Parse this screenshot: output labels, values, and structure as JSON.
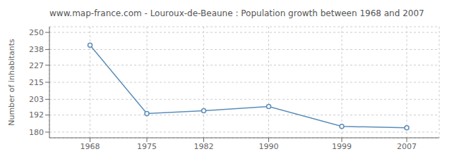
{
  "chart_data": {
    "type": "line",
    "title": "www.map-france.com - Louroux-de-Beaune : Population growth between 1968 and 2007",
    "ylabel": "Number of inhabitants",
    "x": [
      1968,
      1975,
      1982,
      1990,
      1999,
      2007
    ],
    "values": [
      241,
      193,
      195,
      198,
      184,
      183
    ],
    "color": "#5b8db8",
    "marker": "circle",
    "xlim": [
      1963,
      2011
    ],
    "ylim": [
      176,
      254
    ],
    "xticks": [
      1968,
      1975,
      1982,
      1990,
      1999,
      2007
    ],
    "yticks": [
      180,
      192,
      203,
      215,
      227,
      238,
      250
    ],
    "grid": true
  }
}
